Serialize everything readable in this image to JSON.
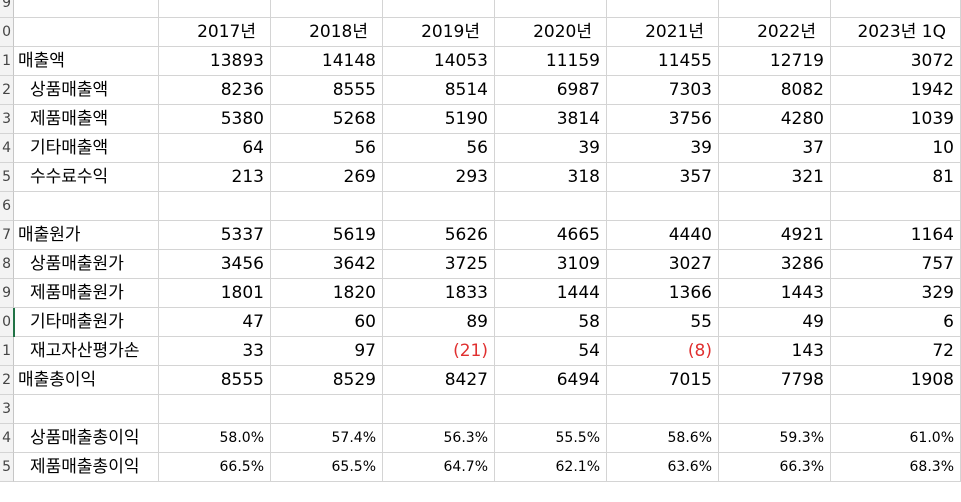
{
  "row_numbers": [
    "9",
    "0",
    "1",
    "2",
    "3",
    "4",
    "5",
    "6",
    "7",
    "8",
    "9",
    "0",
    "1",
    "2",
    "3",
    "4",
    "5"
  ],
  "header": [
    "2017년",
    "2018년",
    "2019년",
    "2020년",
    "2021년",
    "2022년",
    "2023년 1Q"
  ],
  "rows": [
    {
      "label": "매출액",
      "indent": false,
      "values": [
        "13893",
        "14148",
        "14053",
        "11159",
        "11455",
        "12719",
        "3072"
      ]
    },
    {
      "label": "상품매출액",
      "indent": true,
      "values": [
        "8236",
        "8555",
        "8514",
        "6987",
        "7303",
        "8082",
        "1942"
      ]
    },
    {
      "label": "제품매출액",
      "indent": true,
      "values": [
        "5380",
        "5268",
        "5190",
        "3814",
        "3756",
        "4280",
        "1039"
      ]
    },
    {
      "label": "기타매출액",
      "indent": true,
      "values": [
        "64",
        "56",
        "56",
        "39",
        "39",
        "37",
        "10"
      ]
    },
    {
      "label": "수수료수익",
      "indent": true,
      "values": [
        "213",
        "269",
        "293",
        "318",
        "357",
        "321",
        "81"
      ]
    },
    {
      "label": "",
      "indent": false,
      "values": [
        "",
        "",
        "",
        "",
        "",
        "",
        ""
      ]
    },
    {
      "label": "매출원가",
      "indent": false,
      "values": [
        "5337",
        "5619",
        "5626",
        "4665",
        "4440",
        "4921",
        "1164"
      ]
    },
    {
      "label": "상품매출원가",
      "indent": true,
      "values": [
        "3456",
        "3642",
        "3725",
        "3109",
        "3027",
        "3286",
        "757"
      ]
    },
    {
      "label": "제품매출원가",
      "indent": true,
      "values": [
        "1801",
        "1820",
        "1833",
        "1444",
        "1366",
        "1443",
        "329"
      ]
    },
    {
      "label": "기타매출원가",
      "indent": true,
      "values": [
        "47",
        "60",
        "89",
        "58",
        "55",
        "49",
        "6"
      ]
    },
    {
      "label": "재고자산평가손",
      "indent": true,
      "values": [
        "33",
        "97",
        "(21)",
        "54",
        "(8)",
        "143",
        "72"
      ]
    },
    {
      "label": "매출총이익",
      "indent": false,
      "values": [
        "8555",
        "8529",
        "8427",
        "6494",
        "7015",
        "7798",
        "1908"
      ]
    },
    {
      "label": "",
      "indent": false,
      "values": [
        "",
        "",
        "",
        "",
        "",
        "",
        ""
      ]
    },
    {
      "label": "상품매출총이익",
      "indent": true,
      "pct": true,
      "values": [
        "58.0%",
        "57.4%",
        "56.3%",
        "55.5%",
        "58.6%",
        "59.3%",
        "61.0%"
      ]
    },
    {
      "label": "제품매출총이익",
      "indent": true,
      "pct": true,
      "values": [
        "66.5%",
        "65.5%",
        "64.7%",
        "62.1%",
        "63.6%",
        "66.3%",
        "68.3%"
      ]
    }
  ],
  "colors": {
    "negative": "#e03030",
    "grid": "#d4d4d4",
    "active": "#217346"
  }
}
